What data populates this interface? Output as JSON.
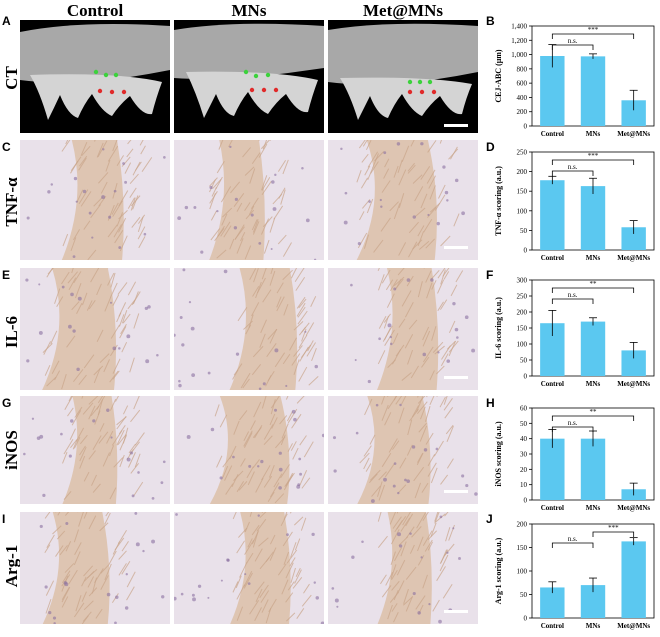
{
  "column_headers": [
    "Control",
    "MNs",
    "Met@MNs"
  ],
  "rows": [
    {
      "panel": "A",
      "label": "CT",
      "chart_panel": "B"
    },
    {
      "panel": "C",
      "label": "TNF-α",
      "chart_panel": "D"
    },
    {
      "panel": "E",
      "label": "IL-6",
      "chart_panel": "F"
    },
    {
      "panel": "G",
      "label": "iNOS",
      "chart_panel": "H"
    },
    {
      "panel": "I",
      "label": "Arg-1",
      "chart_panel": "J"
    }
  ],
  "colors": {
    "bar": "#5bc8f0",
    "ct_bg": "#000000",
    "ct_bone": "#c8c8c8",
    "tissue_bg": "#e9e1ea",
    "tissue_fiber": "#c9a58a",
    "dot_green": "#3cd23c",
    "dot_red": "#e02a2a"
  },
  "chart_data": [
    {
      "type": "bar",
      "panel": "B",
      "categories": [
        "Control",
        "MNs",
        "Met@MNs"
      ],
      "values": [
        980,
        975,
        360
      ],
      "errors": [
        160,
        35,
        140
      ],
      "ylabel": "CEJ-ABC (μm)",
      "ylim": [
        0,
        1400
      ],
      "yticks": [
        0,
        200,
        400,
        600,
        800,
        "1,000",
        "1,200",
        "1,400"
      ],
      "sig": [
        {
          "from": 0,
          "to": 1,
          "label": "n.s."
        },
        {
          "from": 0,
          "to": 2,
          "label": "***"
        }
      ]
    },
    {
      "type": "bar",
      "panel": "D",
      "categories": [
        "Control",
        "MNs",
        "Met@MNs"
      ],
      "values": [
        178,
        163,
        58
      ],
      "errors": [
        10,
        20,
        17
      ],
      "ylabel": "TNF-α scoring (a.u.)",
      "ylim": [
        0,
        250
      ],
      "yticks": [
        0,
        50,
        100,
        150,
        200,
        250
      ],
      "sig": [
        {
          "from": 0,
          "to": 1,
          "label": "n.s."
        },
        {
          "from": 0,
          "to": 2,
          "label": "***"
        }
      ]
    },
    {
      "type": "bar",
      "panel": "F",
      "categories": [
        "Control",
        "MNs",
        "Met@MNs"
      ],
      "values": [
        165,
        170,
        80
      ],
      "errors": [
        40,
        12,
        25
      ],
      "ylabel": "IL-6 scoring (a.u.)",
      "ylim": [
        0,
        300
      ],
      "yticks": [
        0,
        50,
        100,
        150,
        200,
        250,
        300
      ],
      "sig": [
        {
          "from": 0,
          "to": 1,
          "label": "n.s."
        },
        {
          "from": 0,
          "to": 2,
          "label": "**"
        }
      ]
    },
    {
      "type": "bar",
      "panel": "H",
      "categories": [
        "Control",
        "MNs",
        "Met@MNs"
      ],
      "values": [
        40,
        40,
        7
      ],
      "errors": [
        6,
        5,
        4
      ],
      "ylabel": "iNOS scoring (a.u.)",
      "ylim": [
        0,
        60
      ],
      "yticks": [
        0,
        10,
        20,
        30,
        40,
        50,
        60
      ],
      "sig": [
        {
          "from": 0,
          "to": 1,
          "label": "n.s."
        },
        {
          "from": 0,
          "to": 2,
          "label": "**"
        }
      ]
    },
    {
      "type": "bar",
      "panel": "J",
      "categories": [
        "Control",
        "MNs",
        "Met@MNs"
      ],
      "values": [
        65,
        70,
        163
      ],
      "errors": [
        12,
        15,
        8
      ],
      "ylabel": "Arg-1 scoring (a.u.)",
      "ylim": [
        0,
        200
      ],
      "yticks": [
        0,
        50,
        100,
        150,
        200
      ],
      "sig": [
        {
          "from": 0,
          "to": 1,
          "label": "n.s."
        },
        {
          "from": 1,
          "to": 2,
          "label": "***"
        }
      ]
    }
  ]
}
